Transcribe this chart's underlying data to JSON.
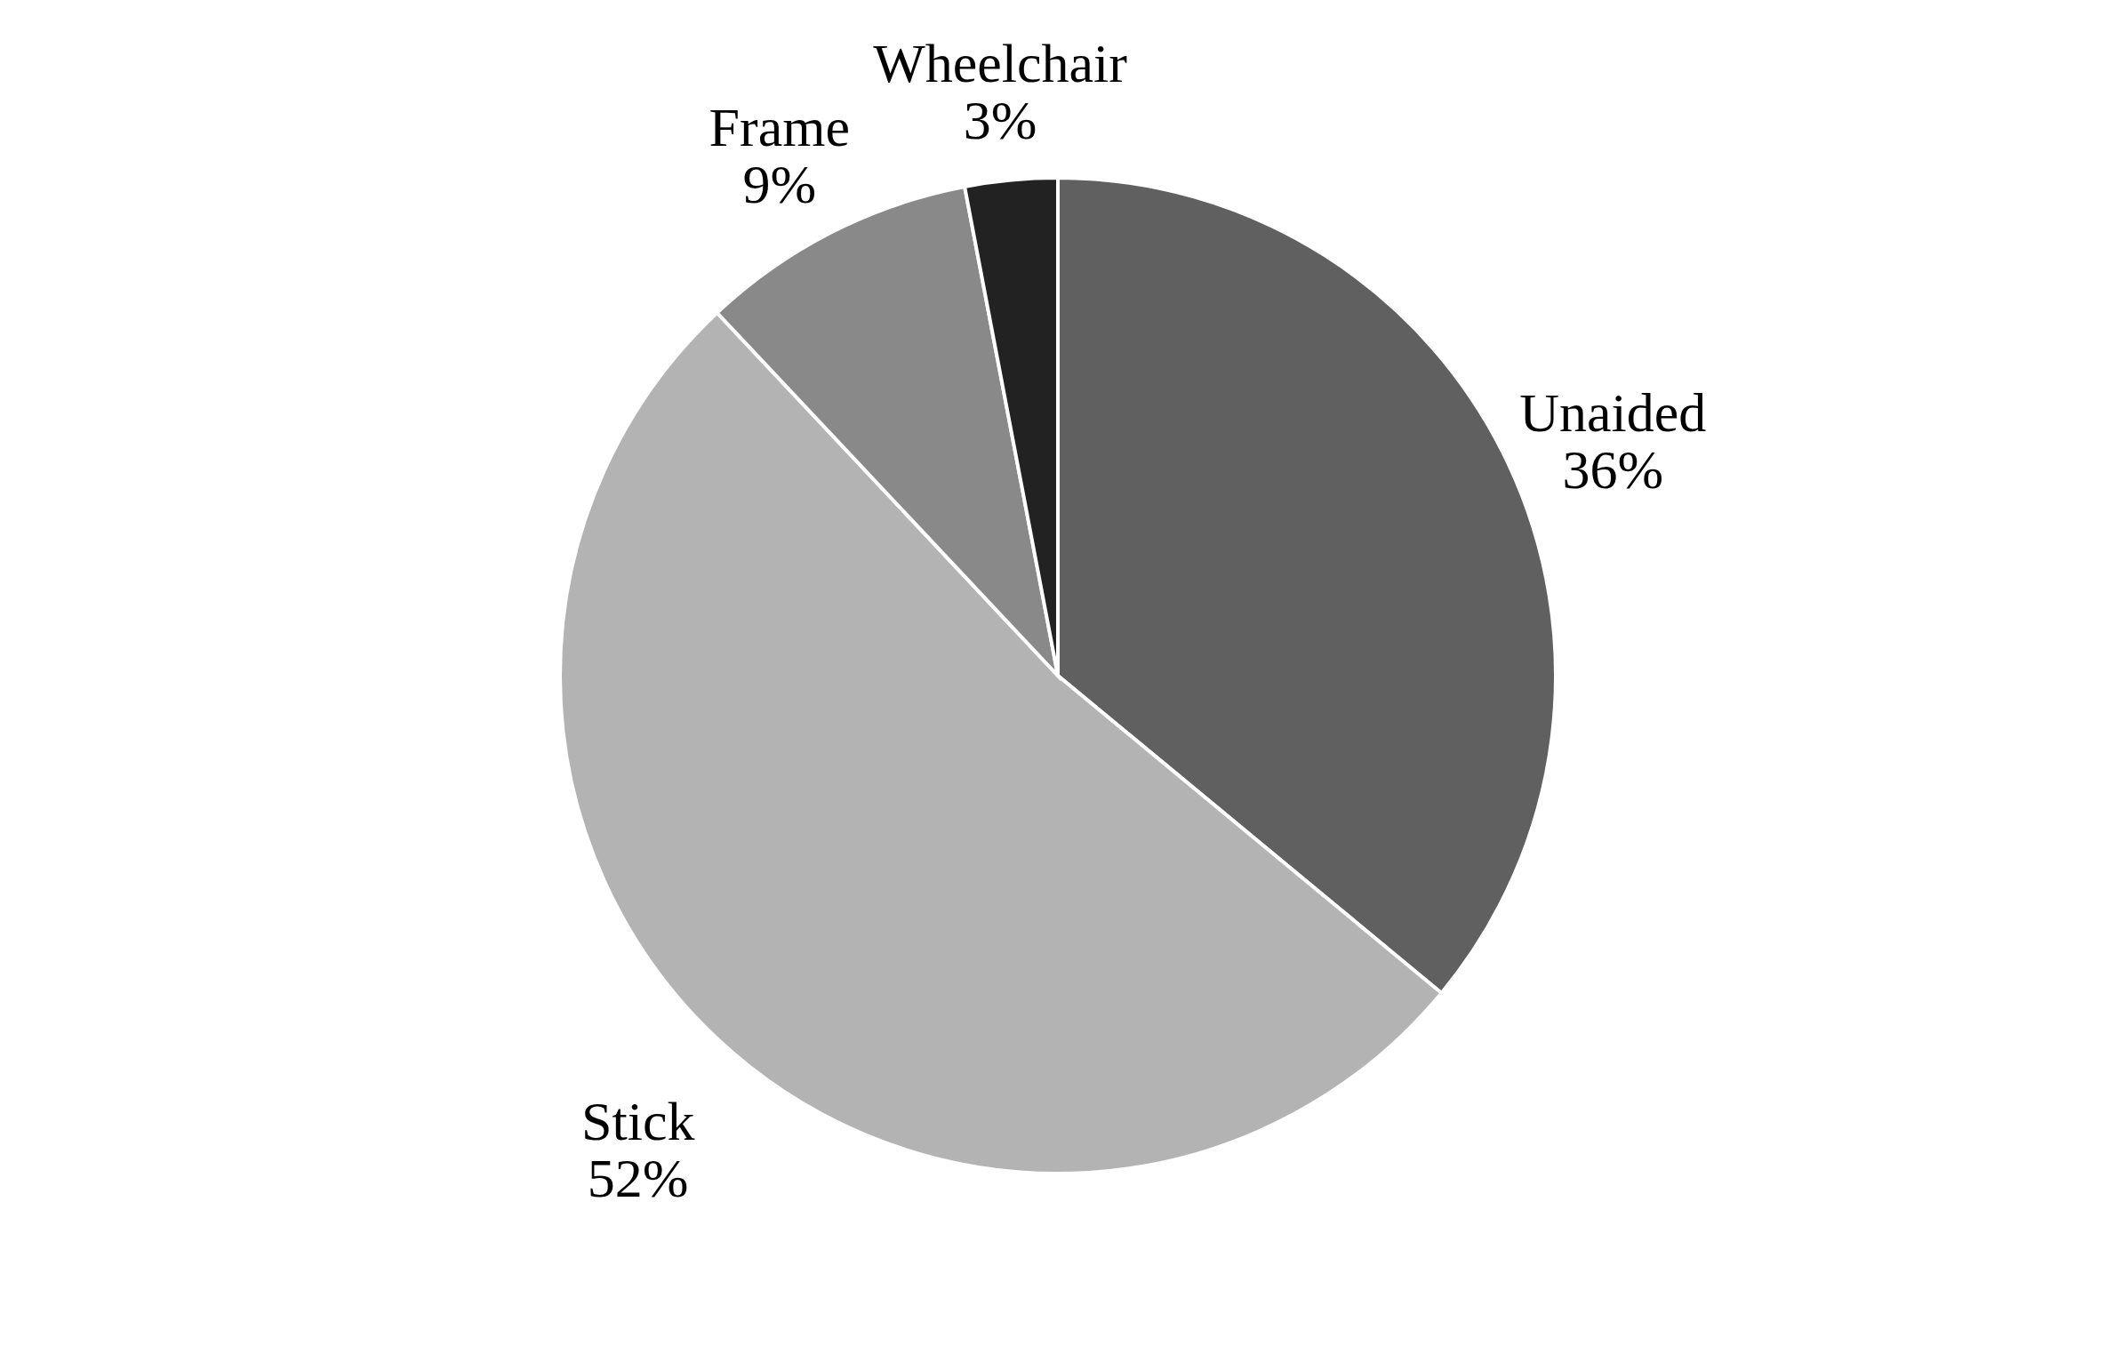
{
  "chart_data": {
    "type": "pie",
    "categories": [
      "Unaided",
      "Stick",
      "Frame",
      "Wheelchair"
    ],
    "values": [
      36,
      52,
      9,
      3
    ],
    "colors": [
      "#606060",
      "#b3b3b3",
      "#898989",
      "#222222"
    ],
    "value_labels": [
      "36%",
      "52%",
      "9%",
      "3%"
    ],
    "legend": false
  }
}
